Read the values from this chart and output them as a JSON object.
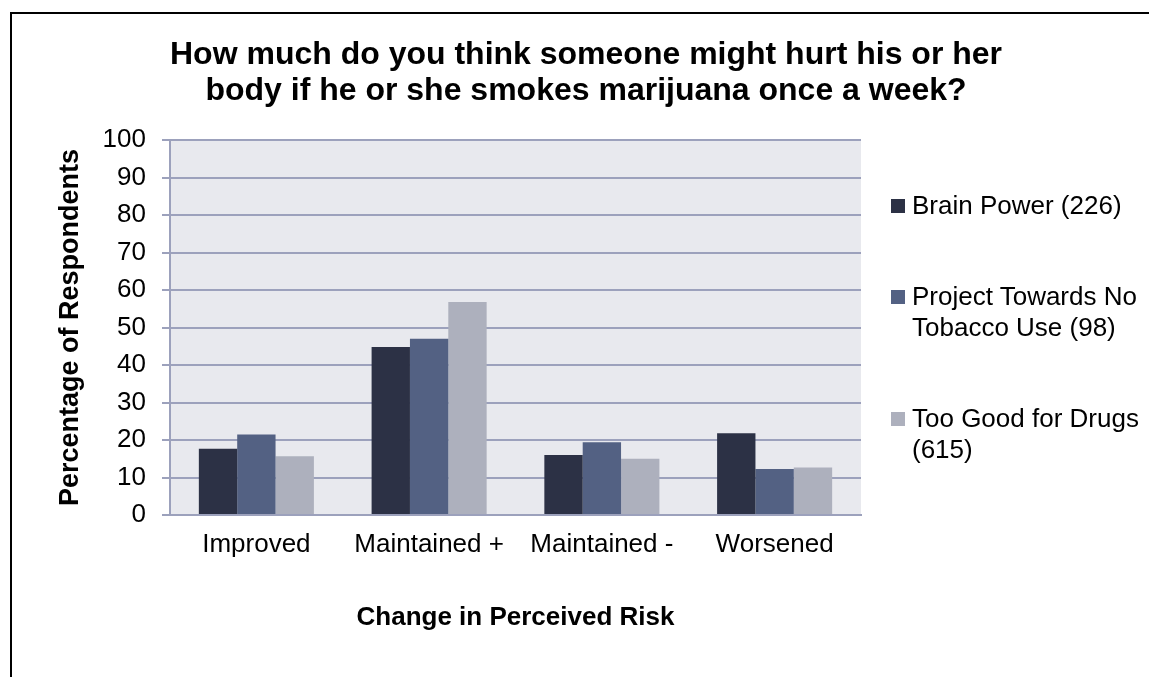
{
  "chart_data": {
    "type": "bar",
    "title": "How much do you think someone might hurt his or her body if he or she smokes marijuana once a week?",
    "xlabel": "Change in Perceived Risk",
    "ylabel": "Percentage of Respondents",
    "categories": [
      "Improved",
      "Maintained +",
      "Maintained -",
      "Worsened"
    ],
    "series": [
      {
        "name": "Brain Power (226)",
        "color": "#2c3145",
        "values": [
          17.7,
          44.8,
          16.0,
          21.8
        ]
      },
      {
        "name": "Project Towards No Tobacco Use (98)",
        "color": "#536183",
        "values": [
          21.5,
          47.0,
          19.4,
          12.3
        ]
      },
      {
        "name": "Too Good for Drugs (615)",
        "color": "#adb0bd",
        "values": [
          15.7,
          56.8,
          15.0,
          12.7
        ]
      }
    ],
    "ylim": [
      0,
      100
    ],
    "yticks": [
      0,
      10,
      20,
      30,
      40,
      50,
      60,
      70,
      80,
      90,
      100
    ],
    "grid": "y",
    "legend": "right"
  }
}
